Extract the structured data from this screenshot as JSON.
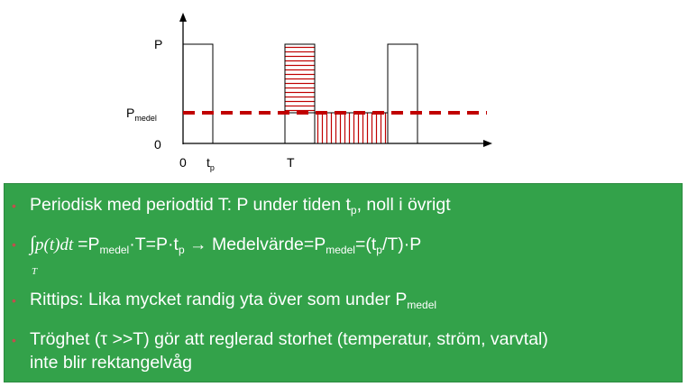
{
  "diagram": {
    "label_P": "P",
    "label_Pmedel_main": "P",
    "label_Pmedel_sub": "medel",
    "label_zero_y": "0",
    "label_zero_x": "0",
    "label_tp_main": "t",
    "label_tp_sub": "p",
    "label_T": "T",
    "colors": {
      "axis": "#000000",
      "mean_line": "#c00000",
      "hatch": "#c00000",
      "box": "#33a24a"
    }
  },
  "bullets": {
    "b1": {
      "text": "Periodisk med periodtid T: P under tiden t",
      "sub1": "p",
      "tail": ", noll i övrigt"
    },
    "b2": {
      "integral_sign": "∫",
      "integrand": "p(t)dt",
      "limit": "T",
      "s1": " =P",
      "sub1": "medel",
      "s2": "·T=P·t",
      "sub2": "p",
      "s3": " → Medelvärde=P",
      "sub3": "medel",
      "s4": "=(t",
      "sub4": "p",
      "s5": "/T)·P"
    },
    "b3": {
      "text": "Rittips: Lika mycket randig yta över som under P",
      "sub1": "medel"
    },
    "b4": {
      "line1": "Tröghet (τ >>T) gör att reglerad storhet (temperatur, ström, varvtal)",
      "line2": "inte blir rektangelvåg"
    }
  }
}
